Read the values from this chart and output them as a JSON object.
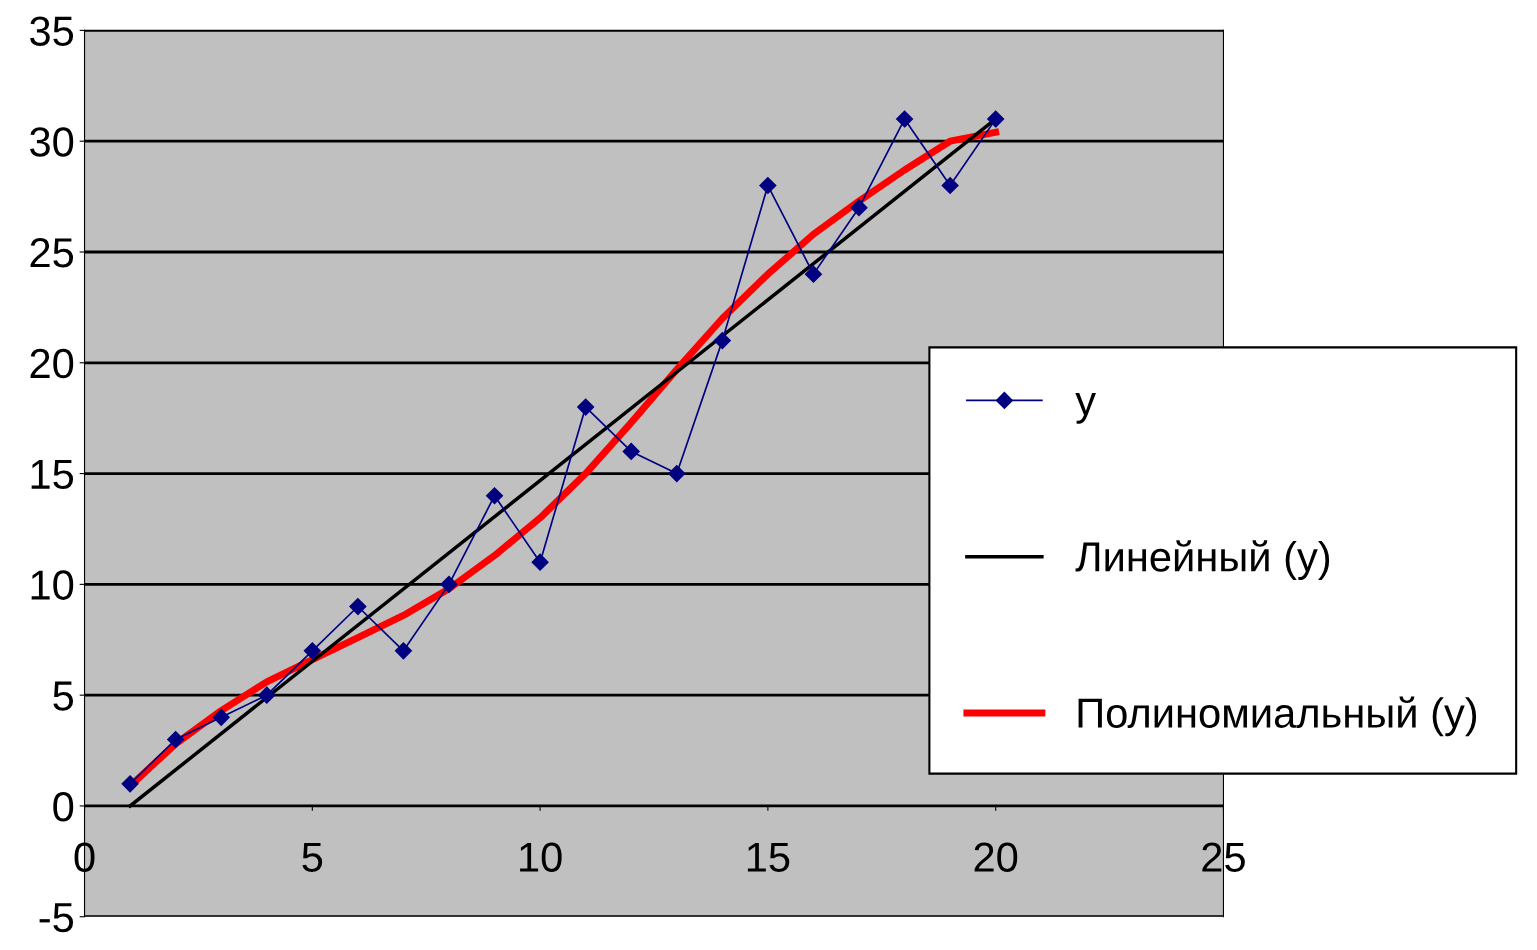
{
  "chart_data": {
    "type": "line",
    "xlim": [
      0,
      25
    ],
    "xticks": [
      0,
      5,
      10,
      15,
      20,
      25
    ],
    "ylim": [
      -5,
      35
    ],
    "yticks": [
      -5,
      0,
      5,
      10,
      15,
      20,
      25,
      30,
      35
    ],
    "grid": "y",
    "legend": "right",
    "series": [
      {
        "name": "y",
        "marker": "diamond",
        "color": "#000080",
        "x": [
          1,
          2,
          3,
          4,
          5,
          6,
          7,
          8,
          9,
          10,
          11,
          12,
          13,
          14,
          15,
          16,
          17,
          18,
          19,
          20
        ],
        "values": [
          1,
          3,
          4,
          5,
          7,
          9,
          7,
          10,
          14,
          11,
          18,
          16,
          15,
          21,
          28,
          24,
          27,
          31,
          28,
          31
        ]
      },
      {
        "name": "Линейный (y)",
        "color": "#000000",
        "x": [
          1,
          20
        ],
        "values": [
          0,
          31
        ]
      },
      {
        "name": "Полиномиальный (y)",
        "color": "#ff0000",
        "x": [
          1,
          2,
          3,
          4,
          5,
          6,
          7,
          8,
          9,
          10,
          11,
          12,
          13,
          14,
          15,
          16,
          17,
          18,
          19,
          20
        ],
        "values": [
          0.9,
          2.8,
          4.3,
          5.6,
          6.6,
          7.6,
          8.6,
          9.8,
          11.3,
          13,
          15,
          17.3,
          19.7,
          22,
          24,
          25.8,
          27.3,
          28.7,
          30,
          30.4
        ]
      }
    ]
  }
}
